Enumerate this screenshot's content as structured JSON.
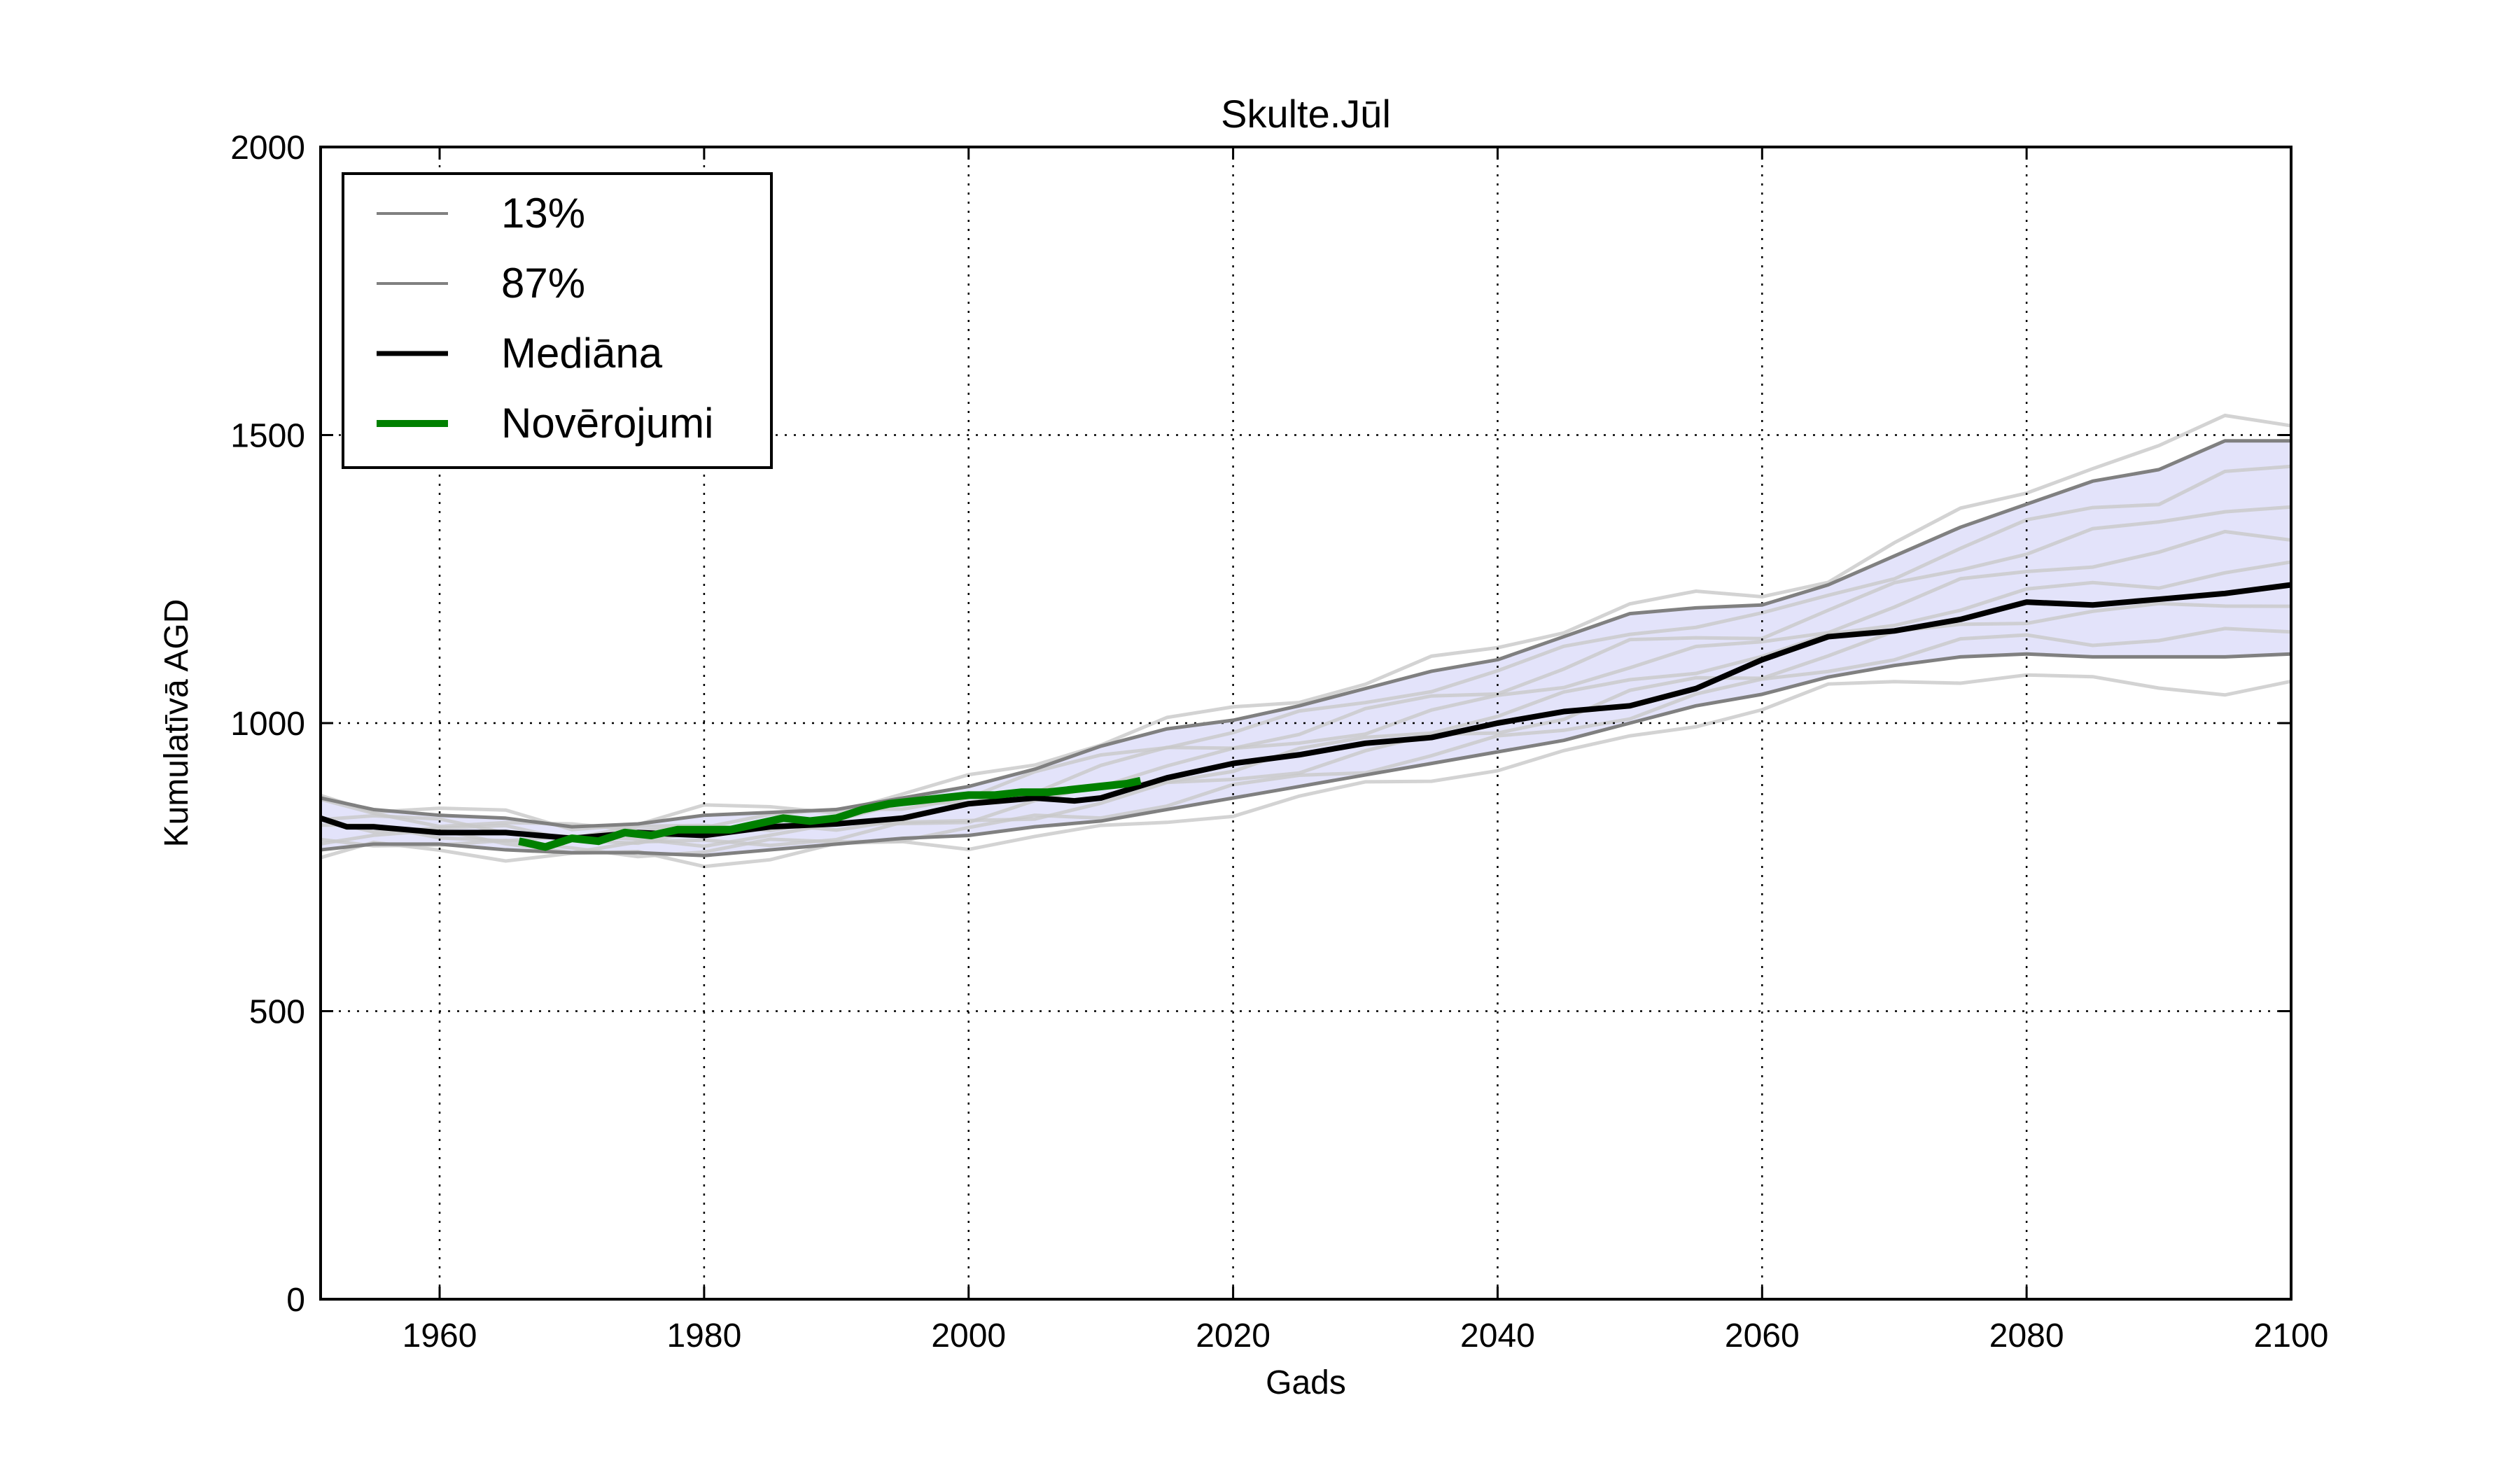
{
  "chart_data": {
    "type": "line",
    "title": "Skulte.Jūl",
    "xlabel": "Gads",
    "ylabel": "Kumulatīvā AGD",
    "xlim": [
      1951,
      2100
    ],
    "ylim": [
      0,
      2000
    ],
    "xticks": [
      1960,
      1980,
      2000,
      2020,
      2040,
      2060,
      2080,
      2100
    ],
    "xtick_labels": [
      "1960",
      "1980",
      "2000",
      "2020",
      "2040",
      "2060",
      "2080",
      "2100"
    ],
    "yticks": [
      0,
      500,
      1000,
      1500,
      2000
    ],
    "ytick_labels": [
      "0",
      "500",
      "1000",
      "1500",
      "2000"
    ],
    "grid": true,
    "legend": {
      "position": "top-left",
      "entries": [
        {
          "label": "13%",
          "color": "#808080"
        },
        {
          "label": "87%",
          "color": "#808080"
        },
        {
          "label": "Mediāna",
          "color": "#000000"
        },
        {
          "label": "Novērojumi",
          "color": "#008000"
        }
      ]
    },
    "band_fill_color": "#e3e3fa",
    "ensemble_color": "#c8c8c8",
    "series": [
      {
        "name": "87%",
        "color": "#808080",
        "x": [
          1951,
          1955,
          1960,
          1965,
          1970,
          1975,
          1980,
          1985,
          1990,
          1995,
          2000,
          2005,
          2010,
          2015,
          2020,
          2025,
          2030,
          2035,
          2040,
          2045,
          2050,
          2055,
          2060,
          2065,
          2070,
          2075,
          2080,
          2085,
          2090,
          2095,
          2100
        ],
        "y": [
          870,
          850,
          840,
          835,
          820,
          825,
          840,
          845,
          850,
          870,
          890,
          920,
          960,
          990,
          1005,
          1030,
          1060,
          1090,
          1110,
          1150,
          1190,
          1200,
          1205,
          1240,
          1290,
          1340,
          1380,
          1420,
          1440,
          1490,
          1490
        ]
      },
      {
        "name": "13%",
        "color": "#808080",
        "x": [
          1951,
          1955,
          1960,
          1965,
          1970,
          1975,
          1980,
          1985,
          1990,
          1995,
          2000,
          2005,
          2010,
          2015,
          2020,
          2025,
          2030,
          2035,
          2040,
          2045,
          2050,
          2055,
          2060,
          2065,
          2070,
          2075,
          2080,
          2085,
          2090,
          2095,
          2100
        ],
        "y": [
          780,
          790,
          790,
          780,
          775,
          775,
          770,
          780,
          790,
          800,
          805,
          820,
          830,
          850,
          870,
          890,
          910,
          930,
          950,
          970,
          1000,
          1030,
          1050,
          1080,
          1100,
          1115,
          1120,
          1115,
          1115,
          1115,
          1120
        ]
      },
      {
        "name": "Mediāna",
        "color": "#000000",
        "x": [
          1951,
          1953,
          1955,
          1960,
          1965,
          1970,
          1975,
          1980,
          1985,
          1990,
          1995,
          2000,
          2005,
          2008,
          2010,
          2015,
          2020,
          2025,
          2030,
          2035,
          2040,
          2045,
          2050,
          2055,
          2060,
          2065,
          2070,
          2075,
          2080,
          2085,
          2090,
          2095,
          2100
        ],
        "y": [
          835,
          820,
          820,
          810,
          810,
          800,
          810,
          805,
          820,
          825,
          835,
          860,
          870,
          865,
          870,
          905,
          930,
          945,
          965,
          975,
          1000,
          1020,
          1030,
          1060,
          1110,
          1150,
          1160,
          1180,
          1210,
          1205,
          1215,
          1225,
          1240
        ]
      },
      {
        "name": "Novērojumi",
        "color": "#008000",
        "x": [
          1966,
          1968,
          1970,
          1972,
          1974,
          1976,
          1978,
          1980,
          1982,
          1984,
          1986,
          1988,
          1990,
          1992,
          1994,
          1996,
          1998,
          2000,
          2002,
          2004,
          2006,
          2008,
          2010,
          2012,
          2013
        ],
        "y": [
          795,
          785,
          800,
          795,
          810,
          805,
          815,
          815,
          815,
          825,
          835,
          830,
          835,
          850,
          860,
          865,
          870,
          875,
          875,
          880,
          880,
          885,
          890,
          895,
          900
        ]
      }
    ]
  }
}
